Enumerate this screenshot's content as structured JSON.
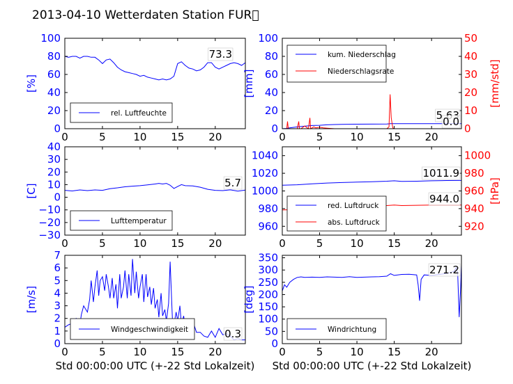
{
  "title": "2013-04-10 Wetterdaten Station FUR\u0000",
  "colors": {
    "blue": "#0000ff",
    "red": "#ff0000",
    "black": "#000000"
  },
  "chart_data": [
    {
      "id": "humidity",
      "type": "line",
      "ylabel": "[%]",
      "xlabel": "",
      "xlim": [
        0,
        24
      ],
      "xticks": [
        "0",
        "5",
        "10",
        "15",
        "20"
      ],
      "ylim": [
        0,
        100
      ],
      "yticks": [
        "0",
        "20",
        "40",
        "60",
        "80",
        "100"
      ],
      "annotation": "73.3",
      "series": [
        {
          "name": "rel. Luftfeuchte",
          "x": [
            0,
            0.5,
            1,
            1.5,
            2,
            2.5,
            3,
            3.5,
            4,
            4.5,
            5,
            5.5,
            6,
            6.5,
            7,
            7.5,
            8,
            8.5,
            9,
            9.5,
            10,
            10.5,
            11,
            11.5,
            12,
            12.5,
            13,
            13.5,
            14,
            14.5,
            15,
            15.5,
            16,
            16.5,
            17,
            17.5,
            18,
            18.5,
            19,
            19.5,
            20,
            20.5,
            21,
            21.5,
            22,
            22.5,
            23,
            23.5,
            24
          ],
          "values": [
            80,
            79,
            80,
            80,
            78,
            80,
            80,
            79,
            79,
            76,
            72,
            76,
            77,
            73,
            68,
            65,
            63,
            62,
            61,
            60,
            58,
            59,
            57,
            56,
            55,
            54,
            55,
            54,
            55,
            58,
            72,
            74,
            70,
            67,
            66,
            64,
            65,
            68,
            73,
            73,
            68,
            66,
            68,
            70,
            72,
            73,
            72,
            70,
            73
          ]
        }
      ]
    },
    {
      "id": "precip",
      "type": "line",
      "ylabel": "[mm]",
      "ylabel_right": "[mm/std]",
      "xlabel": "",
      "xlim": [
        0,
        24
      ],
      "xticks": [
        "0",
        "5",
        "10",
        "15",
        "20"
      ],
      "ylim": [
        0,
        100
      ],
      "yticks": [
        "0",
        "20",
        "40",
        "60",
        "80",
        "100"
      ],
      "ylim_right": [
        0,
        50
      ],
      "yticks_right": [
        "0",
        "10",
        "20",
        "30",
        "40",
        "50"
      ],
      "annotations": [
        "5.63",
        "0.0"
      ],
      "series": [
        {
          "name": "kum. Niederschlag",
          "x": [
            0,
            0.5,
            1,
            2,
            3,
            4,
            5,
            6,
            7,
            8,
            10,
            12,
            14,
            14.5,
            15,
            16,
            18,
            20,
            22,
            24
          ],
          "values": [
            0,
            0.3,
            1,
            2,
            2.8,
            3.5,
            3.8,
            4.3,
            4.6,
            4.8,
            5,
            5.1,
            5.2,
            5.5,
            5.6,
            5.6,
            5.6,
            5.62,
            5.63,
            5.63
          ]
        },
        {
          "name": "Niederschlagsrate",
          "axis": "right",
          "x": [
            0,
            0.6,
            0.7,
            0.8,
            1.2,
            2,
            2.2,
            2.3,
            2.5,
            3,
            3.5,
            3.7,
            3.8,
            4.2,
            4.5,
            5,
            5.5,
            6,
            7,
            8,
            10,
            12,
            14,
            14.3,
            14.45,
            14.6,
            14.8,
            15,
            18,
            22,
            24
          ],
          "values": [
            0,
            0,
            4,
            0,
            0,
            0,
            4,
            0,
            0,
            1.5,
            0,
            6,
            0,
            1,
            0.5,
            0.8,
            0.5,
            0.3,
            0,
            0,
            0,
            0,
            0,
            1,
            19,
            6,
            0.5,
            0,
            0,
            0,
            0
          ]
        }
      ]
    },
    {
      "id": "temperature",
      "type": "line",
      "ylabel": "[C]",
      "xlabel": "",
      "xlim": [
        0,
        24
      ],
      "xticks": [
        "0",
        "5",
        "10",
        "15",
        "20"
      ],
      "ylim": [
        -30,
        40
      ],
      "yticks": [
        "−30",
        "−20",
        "−10",
        "0",
        "10",
        "20",
        "30",
        "40"
      ],
      "annotation": "5.7",
      "series": [
        {
          "name": "Lufttemperatur",
          "x": [
            0,
            1,
            2,
            3,
            4,
            5,
            6,
            7,
            8,
            9,
            10,
            11,
            12,
            12.5,
            13,
            13.5,
            14,
            14.5,
            15,
            15.5,
            16,
            17,
            18,
            19,
            20,
            21,
            22,
            23,
            24
          ],
          "values": [
            5.5,
            5,
            5.8,
            5.3,
            5.8,
            5.5,
            6.8,
            7.5,
            8.3,
            8.8,
            9.2,
            9.8,
            10.5,
            11,
            10.5,
            11,
            9.5,
            7,
            8.5,
            10,
            9.2,
            9,
            8,
            6.3,
            5.5,
            5.3,
            5.9,
            4.9,
            5.7
          ]
        }
      ]
    },
    {
      "id": "pressure",
      "type": "line",
      "ylabel": "",
      "ylabel_right": "[hPa]",
      "xlabel": "",
      "xlim": [
        0,
        24
      ],
      "xticks": [
        "0",
        "5",
        "10",
        "15",
        "20"
      ],
      "ylim": [
        950,
        1050
      ],
      "yticks": [
        "960",
        "980",
        "1000",
        "1020",
        "1040"
      ],
      "ylim_right": [
        910,
        1010
      ],
      "yticks_right": [
        "920",
        "940",
        "960",
        "980",
        "1000"
      ],
      "annotations": [
        "1011.9",
        "944.0"
      ],
      "series": [
        {
          "name": "red. Luftdruck",
          "x": [
            0,
            2,
            4,
            6,
            8,
            10,
            12,
            14,
            15,
            16,
            18,
            20,
            22,
            24
          ],
          "values": [
            1006.5,
            1007,
            1008,
            1009,
            1009.5,
            1010,
            1010.5,
            1011,
            1011.5,
            1010.8,
            1011,
            1011.5,
            1011.8,
            1011.9
          ]
        },
        {
          "name": "abs. Luftdruck",
          "axis": "right",
          "x": [
            0,
            2,
            4,
            6,
            8,
            10,
            12,
            14,
            15,
            16,
            18,
            20,
            22,
            24
          ],
          "values": [
            938.5,
            938.8,
            940,
            941,
            942,
            942.5,
            943,
            943.5,
            944,
            943.5,
            943.8,
            944,
            944,
            944
          ]
        }
      ]
    },
    {
      "id": "wind-speed",
      "type": "line",
      "ylabel": "[m/s]",
      "xlabel": "Std 00:00:00 UTC (+-22 Std Lokalzeit)",
      "xlim": [
        0,
        24
      ],
      "xticks": [
        "0",
        "5",
        "10",
        "15",
        "20"
      ],
      "ylim": [
        0,
        7
      ],
      "yticks": [
        "0",
        "1",
        "2",
        "3",
        "4",
        "5",
        "6",
        "7"
      ],
      "annotation": "0.3",
      "series": [
        {
          "name": "Windgeschwindigkeit",
          "x": [
            0,
            0.5,
            1,
            1.5,
            2,
            2.2,
            2.5,
            3,
            3.3,
            3.5,
            3.8,
            4,
            4.3,
            4.5,
            4.7,
            5,
            5.3,
            5.5,
            5.8,
            6,
            6.3,
            6.5,
            6.8,
            7,
            7.3,
            7.5,
            7.8,
            8,
            8.3,
            8.5,
            8.8,
            9,
            9.3,
            9.5,
            9.8,
            10,
            10.3,
            10.5,
            10.8,
            11,
            11.3,
            11.5,
            11.8,
            12,
            12.3,
            12.5,
            12.8,
            13,
            13.3,
            13.5,
            13.8,
            14,
            14.3,
            14.5,
            14.8,
            15,
            15.3,
            15.5,
            15.8,
            16,
            16.5,
            17,
            17.5,
            18,
            18.5,
            19,
            19.5,
            20,
            20.5,
            21,
            21.5,
            22,
            22.5,
            23,
            23.5,
            24
          ],
          "values": [
            1.3,
            1.5,
            1.6,
            2,
            1.5,
            2.3,
            3,
            2.5,
            3.5,
            5,
            3.3,
            4.5,
            5.8,
            3.8,
            5,
            5.3,
            4.2,
            5.5,
            4.5,
            3.6,
            5.2,
            3.6,
            4.7,
            2.8,
            5.5,
            3.6,
            4.5,
            5.8,
            3.6,
            5.5,
            3.8,
            6.7,
            4,
            5.7,
            3.6,
            4.5,
            5.5,
            3.3,
            5.5,
            3.7,
            4.5,
            3.1,
            4.4,
            2.8,
            3.5,
            2.1,
            4,
            2.2,
            2.7,
            1.8,
            3.2,
            6.5,
            2,
            1.5,
            2.5,
            1.8,
            3,
            1.5,
            2.2,
            1.3,
            1.8,
            1.8,
            0.9,
            0.9,
            0.6,
            0.5,
            1,
            0.5,
            1.2,
            0.7,
            0.8,
            0.6,
            0.3,
            0.4,
            0.3,
            0.3
          ]
        }
      ]
    },
    {
      "id": "wind-direction",
      "type": "line",
      "ylabel": "[deg]",
      "xlabel": "Std 00:00:00 UTC (+-22 Std Lokalzeit)",
      "xlim": [
        0,
        24
      ],
      "xticks": [
        "0",
        "5",
        "10",
        "15",
        "20"
      ],
      "ylim": [
        0,
        360
      ],
      "yticks": [
        "0",
        "50",
        "100",
        "150",
        "200",
        "250",
        "300",
        "350"
      ],
      "annotation": "271.2",
      "series": [
        {
          "name": "Windrichtung",
          "x": [
            0,
            0.3,
            0.6,
            1,
            1.5,
            2,
            2.5,
            3,
            4,
            5,
            6,
            7,
            8,
            9,
            10,
            11,
            12,
            13,
            14,
            14.5,
            15,
            16,
            17,
            18,
            18.2,
            18.4,
            18.6,
            19,
            20,
            21,
            22,
            23,
            23.3,
            23.5,
            23.7,
            23.9,
            24
          ],
          "values": [
            215,
            240,
            230,
            250,
            262,
            270,
            272,
            270,
            271,
            270,
            272,
            271,
            270,
            273,
            270,
            271,
            272,
            273,
            275,
            285,
            278,
            282,
            283,
            280,
            240,
            175,
            262,
            280,
            278,
            282,
            286,
            294,
            310,
            290,
            108,
            230,
            320
          ]
        }
      ]
    }
  ]
}
